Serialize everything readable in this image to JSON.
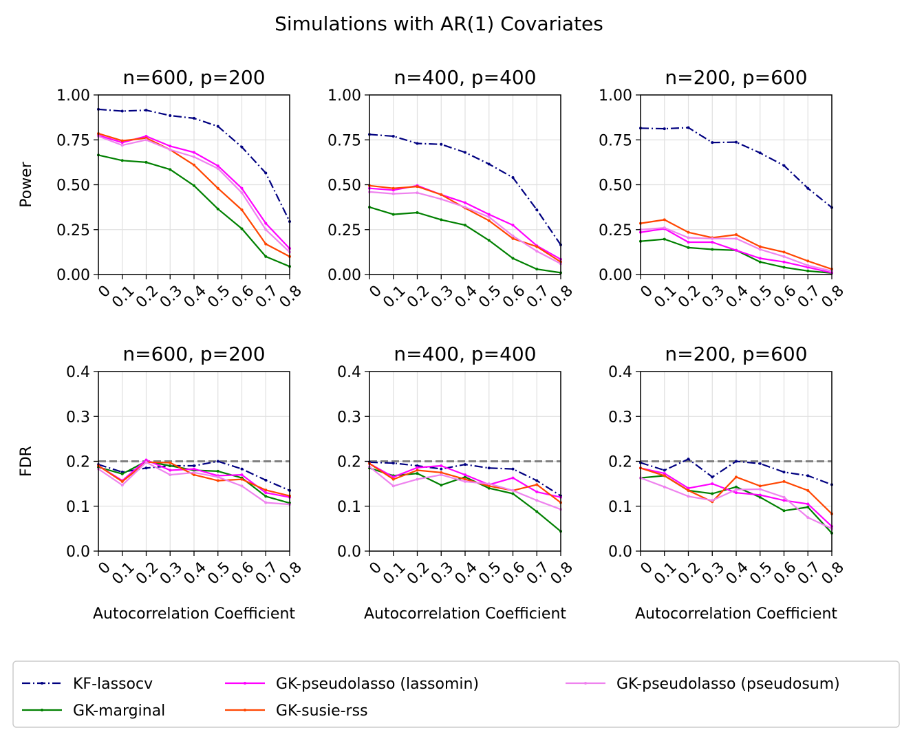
{
  "suptitle": "Simulations with AR(1) Covariates",
  "colors": {
    "KF-lassocv": "#000080",
    "GK-marginal": "#008000",
    "GK-pseudolasso (lassomin)": "#ff00ff",
    "GK-susie-rss": "#ff4500",
    "GK-pseudolasso (pseudosum)": "#ee82ee",
    "target": "#808080",
    "grid": "#e0e0e0"
  },
  "chart_data": [
    {
      "type": "line",
      "panel": "power-600-200",
      "title": "n=600, p=200",
      "ylabel": "Power",
      "xlabel": "",
      "categories": [
        "0",
        "0.1",
        "0.2",
        "0.3",
        "0.4",
        "0.5",
        "0.6",
        "0.7",
        "0.8"
      ],
      "ylim": [
        0,
        1
      ],
      "yticks": [
        "0.00",
        "0.25",
        "0.50",
        "0.75",
        "1.00"
      ],
      "series": [
        {
          "name": "KF-lassocv",
          "values": [
            0.92,
            0.91,
            0.915,
            0.885,
            0.87,
            0.825,
            0.71,
            0.565,
            0.295
          ]
        },
        {
          "name": "GK-marginal",
          "values": [
            0.665,
            0.635,
            0.625,
            0.585,
            0.495,
            0.365,
            0.255,
            0.1,
            0.045
          ]
        },
        {
          "name": "GK-pseudolasso (lassomin)",
          "values": [
            0.775,
            0.735,
            0.77,
            0.715,
            0.68,
            0.605,
            0.48,
            0.285,
            0.145
          ]
        },
        {
          "name": "GK-susie-rss",
          "values": [
            0.785,
            0.745,
            0.76,
            0.695,
            0.61,
            0.48,
            0.36,
            0.17,
            0.1
          ]
        },
        {
          "name": "GK-pseudolasso (pseudosum)",
          "values": [
            0.77,
            0.72,
            0.75,
            0.695,
            0.655,
            0.59,
            0.455,
            0.25,
            0.125
          ]
        }
      ]
    },
    {
      "type": "line",
      "panel": "power-400-400",
      "title": "n=400, p=400",
      "ylabel": "",
      "xlabel": "",
      "categories": [
        "0",
        "0.1",
        "0.2",
        "0.3",
        "0.4",
        "0.5",
        "0.6",
        "0.7",
        "0.8"
      ],
      "ylim": [
        0,
        1
      ],
      "yticks": [
        "0.00",
        "0.25",
        "0.50",
        "0.75",
        "1.00"
      ],
      "series": [
        {
          "name": "KF-lassocv",
          "values": [
            0.78,
            0.77,
            0.73,
            0.725,
            0.68,
            0.615,
            0.54,
            0.36,
            0.165
          ]
        },
        {
          "name": "GK-marginal",
          "values": [
            0.375,
            0.335,
            0.345,
            0.305,
            0.275,
            0.19,
            0.09,
            0.03,
            0.01
          ]
        },
        {
          "name": "GK-pseudolasso (lassomin)",
          "values": [
            0.48,
            0.47,
            0.495,
            0.445,
            0.4,
            0.335,
            0.275,
            0.16,
            0.085
          ]
        },
        {
          "name": "GK-susie-rss",
          "values": [
            0.495,
            0.48,
            0.49,
            0.445,
            0.37,
            0.3,
            0.2,
            0.155,
            0.07
          ]
        },
        {
          "name": "GK-pseudolasso (pseudosum)",
          "values": [
            0.46,
            0.45,
            0.455,
            0.42,
            0.375,
            0.32,
            0.215,
            0.13,
            0.06
          ]
        }
      ]
    },
    {
      "type": "line",
      "panel": "power-200-600",
      "title": "n=200, p=600",
      "ylabel": "",
      "xlabel": "",
      "categories": [
        "0",
        "0.1",
        "0.2",
        "0.3",
        "0.4",
        "0.5",
        "0.6",
        "0.7",
        "0.8"
      ],
      "ylim": [
        0,
        1
      ],
      "yticks": [
        "0.00",
        "0.25",
        "0.50",
        "0.75",
        "1.00"
      ],
      "series": [
        {
          "name": "KF-lassocv",
          "values": [
            0.815,
            0.812,
            0.818,
            0.735,
            0.737,
            0.677,
            0.607,
            0.48,
            0.373
          ]
        },
        {
          "name": "GK-marginal",
          "values": [
            0.185,
            0.197,
            0.15,
            0.14,
            0.135,
            0.07,
            0.04,
            0.02,
            0.008
          ]
        },
        {
          "name": "GK-pseudolasso (lassomin)",
          "values": [
            0.235,
            0.255,
            0.18,
            0.18,
            0.135,
            0.09,
            0.07,
            0.04,
            0.01
          ]
        },
        {
          "name": "GK-susie-rss",
          "values": [
            0.285,
            0.305,
            0.235,
            0.205,
            0.222,
            0.155,
            0.125,
            0.075,
            0.03
          ]
        },
        {
          "name": "GK-pseudolasso (pseudosum)",
          "values": [
            0.25,
            0.26,
            0.205,
            0.2,
            0.2,
            0.14,
            0.1,
            0.05,
            0.02
          ]
        }
      ]
    },
    {
      "type": "line",
      "panel": "fdr-600-200",
      "title": "n=600, p=200",
      "ylabel": "FDR",
      "xlabel": "Autocorrelation Coefficient",
      "categories": [
        "0",
        "0.1",
        "0.2",
        "0.3",
        "0.4",
        "0.5",
        "0.6",
        "0.7",
        "0.8"
      ],
      "ylim": [
        0,
        0.4
      ],
      "target": 0.2,
      "yticks": [
        "0.0",
        "0.1",
        "0.2",
        "0.3",
        "0.4"
      ],
      "series": [
        {
          "name": "KF-lassocv",
          "values": [
            0.193,
            0.176,
            0.185,
            0.19,
            0.19,
            0.2,
            0.183,
            0.158,
            0.135
          ]
        },
        {
          "name": "GK-marginal",
          "values": [
            0.187,
            0.172,
            0.2,
            0.19,
            0.18,
            0.178,
            0.163,
            0.122,
            0.107
          ]
        },
        {
          "name": "GK-pseudolasso (lassomin)",
          "values": [
            0.19,
            0.157,
            0.203,
            0.18,
            0.183,
            0.168,
            0.17,
            0.13,
            0.12
          ]
        },
        {
          "name": "GK-susie-rss",
          "values": [
            0.19,
            0.155,
            0.198,
            0.197,
            0.17,
            0.157,
            0.16,
            0.136,
            0.123
          ]
        },
        {
          "name": "GK-pseudolasso (pseudosum)",
          "values": [
            0.183,
            0.147,
            0.198,
            0.17,
            0.175,
            0.165,
            0.145,
            0.108,
            0.104
          ]
        }
      ]
    },
    {
      "type": "line",
      "panel": "fdr-400-400",
      "title": "n=400, p=400",
      "ylabel": "",
      "xlabel": "Autocorrelation Coefficient",
      "categories": [
        "0",
        "0.1",
        "0.2",
        "0.3",
        "0.4",
        "0.5",
        "0.6",
        "0.7",
        "0.8"
      ],
      "ylim": [
        0,
        0.4
      ],
      "target": 0.2,
      "yticks": [
        "0.0",
        "0.1",
        "0.2",
        "0.3",
        "0.4"
      ],
      "series": [
        {
          "name": "KF-lassocv",
          "values": [
            0.198,
            0.196,
            0.19,
            0.183,
            0.193,
            0.185,
            0.183,
            0.157,
            0.123
          ]
        },
        {
          "name": "GK-marginal",
          "values": [
            0.185,
            0.168,
            0.173,
            0.147,
            0.165,
            0.14,
            0.128,
            0.088,
            0.044
          ]
        },
        {
          "name": "GK-pseudolasso (lassomin)",
          "values": [
            0.195,
            0.165,
            0.186,
            0.19,
            0.17,
            0.148,
            0.163,
            0.132,
            0.12
          ]
        },
        {
          "name": "GK-susie-rss",
          "values": [
            0.195,
            0.16,
            0.18,
            0.175,
            0.16,
            0.145,
            0.135,
            0.148,
            0.108
          ]
        },
        {
          "name": "GK-pseudolasso (pseudosum)",
          "values": [
            0.188,
            0.145,
            0.16,
            0.17,
            0.155,
            0.15,
            0.135,
            0.113,
            0.093
          ]
        }
      ]
    },
    {
      "type": "line",
      "panel": "fdr-200-600",
      "title": "n=200, p=600",
      "ylabel": "",
      "xlabel": "Autocorrelation Coefficient",
      "categories": [
        "0",
        "0.1",
        "0.2",
        "0.3",
        "0.4",
        "0.5",
        "0.6",
        "0.7",
        "0.8"
      ],
      "ylim": [
        0,
        0.4
      ],
      "target": 0.2,
      "yticks": [
        "0.0",
        "0.1",
        "0.2",
        "0.3",
        "0.4"
      ],
      "series": [
        {
          "name": "KF-lassocv",
          "values": [
            0.197,
            0.18,
            0.205,
            0.165,
            0.2,
            0.195,
            0.176,
            0.168,
            0.148
          ]
        },
        {
          "name": "GK-marginal",
          "values": [
            0.163,
            0.168,
            0.135,
            0.128,
            0.143,
            0.12,
            0.09,
            0.098,
            0.04
          ]
        },
        {
          "name": "GK-pseudolasso (lassomin)",
          "values": [
            0.185,
            0.173,
            0.14,
            0.15,
            0.13,
            0.125,
            0.113,
            0.105,
            0.055
          ]
        },
        {
          "name": "GK-susie-rss",
          "values": [
            0.185,
            0.168,
            0.135,
            0.11,
            0.165,
            0.145,
            0.155,
            0.135,
            0.083
          ]
        },
        {
          "name": "GK-pseudolasso (pseudosum)",
          "values": [
            0.163,
            0.143,
            0.122,
            0.113,
            0.137,
            0.138,
            0.12,
            0.075,
            0.05
          ]
        }
      ]
    }
  ],
  "legend": {
    "items": [
      {
        "name": "KF-lassocv",
        "style": "dashdot"
      },
      {
        "name": "GK-marginal",
        "style": "solid"
      },
      {
        "name": "GK-pseudolasso (lassomin)",
        "style": "solid"
      },
      {
        "name": "GK-susie-rss",
        "style": "solid"
      },
      {
        "name": "GK-pseudolasso (pseudosum)",
        "style": "solid"
      }
    ]
  }
}
